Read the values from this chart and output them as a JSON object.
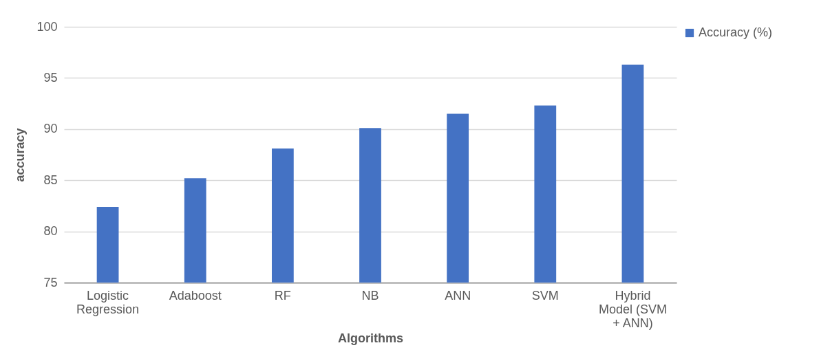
{
  "chart_data": {
    "type": "bar",
    "xlabel": "Algorithms",
    "ylabel": "accuracy",
    "categories": [
      "Logistic Regression",
      "Adaboost",
      "RF",
      "NB",
      "ANN",
      "SVM",
      "Hybrid Model (SVM + ANN)"
    ],
    "series": [
      {
        "name": "Accuracy (%)",
        "color": "#4472c4",
        "values": [
          82.4,
          85.2,
          88.1,
          90.1,
          91.5,
          92.3,
          96.3
        ]
      }
    ],
    "ylim": [
      75,
      100
    ],
    "yticks": [
      75,
      80,
      85,
      90,
      95,
      100
    ],
    "grid": "y",
    "legend": "right"
  }
}
